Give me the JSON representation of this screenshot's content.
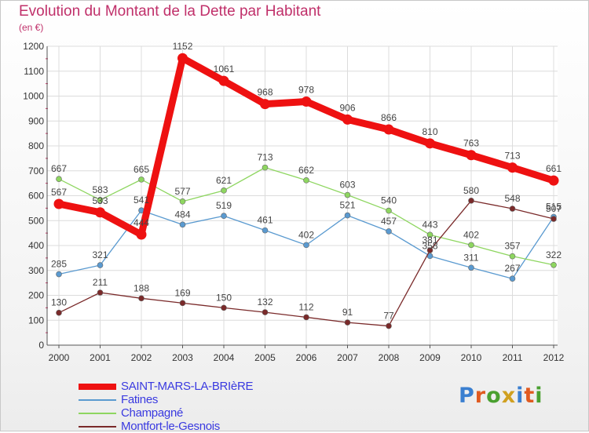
{
  "title": "Evolution du Montant de la Dette par Habitant",
  "subtitle": "(en €)",
  "logo": {
    "letters": [
      "P",
      "r",
      "o",
      "x",
      "i",
      "t",
      "i"
    ],
    "colors": [
      "#3a7fd0",
      "#e05a20",
      "#4aa030",
      "#d0a020",
      "#3a7fd0",
      "#e05a20",
      "#4aa030"
    ]
  },
  "chart_data": {
    "type": "line",
    "title": "Evolution du Montant de la Dette par Habitant",
    "x": [
      "2000",
      "2001",
      "2002",
      "2003",
      "2004",
      "2005",
      "2006",
      "2007",
      "2008",
      "2009",
      "2010",
      "2011",
      "2012"
    ],
    "ylim": [
      0,
      1200
    ],
    "yticks": [
      "0",
      "100",
      "200",
      "300",
      "400",
      "500",
      "600",
      "700",
      "800",
      "900",
      "1000",
      "1100",
      "1200"
    ],
    "grid": true,
    "legend_position": "bottom",
    "series": [
      {
        "name": "SAINT-MARS-LA-BRIèRE",
        "color": "#ee1111",
        "width": 9,
        "values": [
          567,
          533,
          444,
          1152,
          1061,
          968,
          978,
          906,
          866,
          810,
          763,
          713,
          661
        ]
      },
      {
        "name": "Fatines",
        "color": "#5a9ad0",
        "width": 1.3,
        "values": [
          285,
          321,
          541,
          484,
          519,
          461,
          402,
          521,
          457,
          358,
          311,
          267,
          515
        ]
      },
      {
        "name": "Champagné",
        "color": "#8ed660",
        "width": 1.3,
        "values": [
          667,
          583,
          665,
          577,
          621,
          713,
          662,
          603,
          540,
          443,
          402,
          357,
          322
        ]
      },
      {
        "name": "Montfort-le-Gesnois",
        "color": "#7a2a2a",
        "width": 1.3,
        "values": [
          130,
          211,
          188,
          169,
          150,
          132,
          112,
          91,
          77,
          381,
          580,
          548,
          507
        ]
      }
    ],
    "data_labels": [
      {
        "series": 0,
        "labels": [
          "567",
          "533",
          "444",
          "1152",
          "1061",
          "968",
          "978",
          "906",
          "866",
          "810",
          "763",
          "713",
          "661"
        ]
      },
      {
        "series": 1,
        "labels": [
          "285",
          "321",
          "541",
          "484",
          "519",
          "461",
          "402",
          "521",
          "457",
          "358",
          "311",
          "267",
          "515"
        ]
      },
      {
        "series": 2,
        "labels": [
          "667",
          "583",
          "665",
          "577",
          "621",
          "713",
          "662",
          "603",
          "540",
          "443",
          "402",
          "357",
          "322"
        ]
      },
      {
        "series": 3,
        "labels": [
          "130",
          "211",
          "188",
          "169",
          "150",
          "132",
          "112",
          "91",
          "77",
          "381",
          "580",
          "548",
          "507"
        ]
      }
    ]
  }
}
